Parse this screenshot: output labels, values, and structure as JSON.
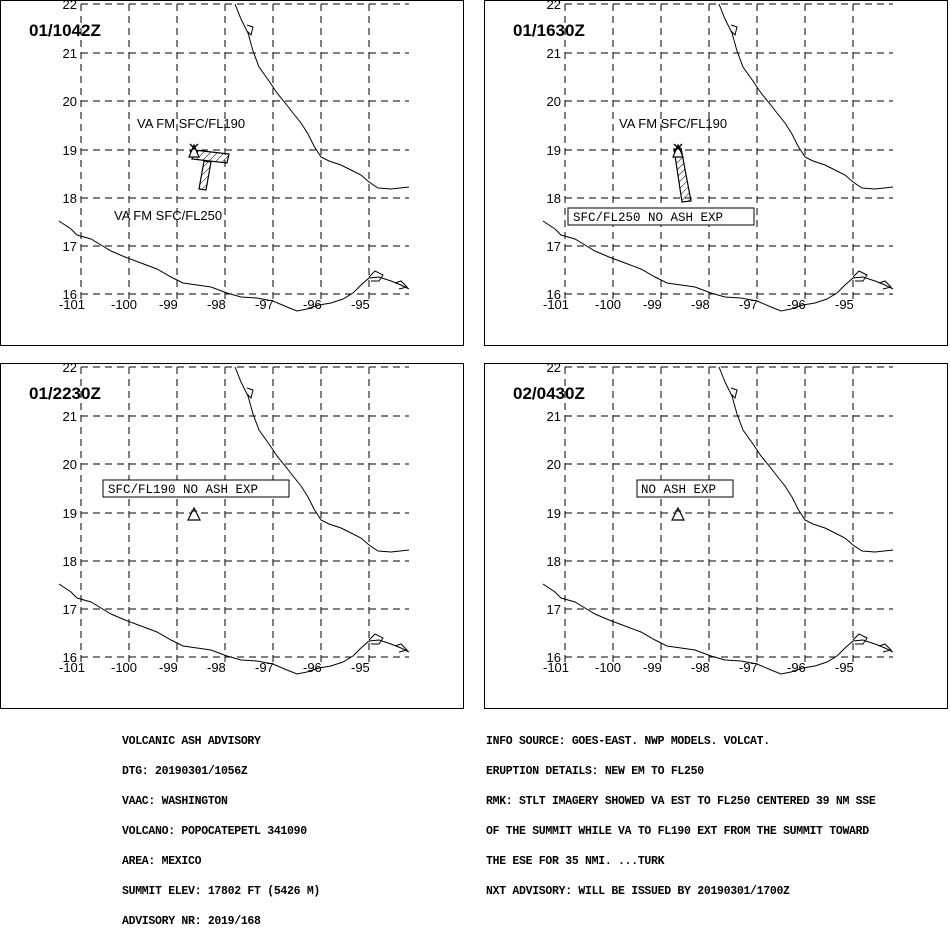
{
  "panels": [
    {
      "id": "p1",
      "valid_time": "01/1042Z",
      "labels": [
        "VA FM SFC/FL190",
        "VA FM SFC/FL250"
      ],
      "boxed_label": ""
    },
    {
      "id": "p2",
      "valid_time": "01/1630Z",
      "labels": [
        "VA FM SFC/FL190"
      ],
      "boxed_label": "SFC/FL250 NO ASH EXP"
    },
    {
      "id": "p3",
      "valid_time": "01/2230Z",
      "labels": [],
      "boxed_label": "SFC/FL190 NO ASH EXP"
    },
    {
      "id": "p4",
      "valid_time": "02/0430Z",
      "labels": [],
      "boxed_label": "NO ASH EXP"
    }
  ],
  "axes": {
    "lon_ticks": [
      "-101",
      "-100",
      "-99",
      "-98",
      "-97",
      "-96",
      "-95"
    ],
    "lat_ticks": [
      "22",
      "21",
      "20",
      "19",
      "18",
      "17",
      "16"
    ]
  },
  "advisory_left": [
    "VOLCANIC ASH ADVISORY",
    "DTG: 20190301/1056Z",
    "VAAC: WASHINGTON",
    "VOLCANO: POPOCATEPETL 341090",
    "AREA: MEXICO",
    "SUMMIT ELEV: 17802 FT (5426 M)",
    "ADVISORY NR: 2019/168"
  ],
  "advisory_right": [
    "INFO SOURCE: GOES-EAST. NWP MODELS. VOLCAT.",
    "ERUPTION DETAILS: NEW EM TO FL250",
    "RMK: STLT IMAGERY SHOWED VA EST TO FL250 CENTERED 39 NM SSE",
    "OF THE SUMMIT WHILE VA TO FL190 EXT FROM THE SUMMIT TOWARD",
    "THE ESE FOR 35 NMI. ...TURK",
    "NXT ADVISORY: WILL BE ISSUED BY 20190301/1700Z"
  ]
}
